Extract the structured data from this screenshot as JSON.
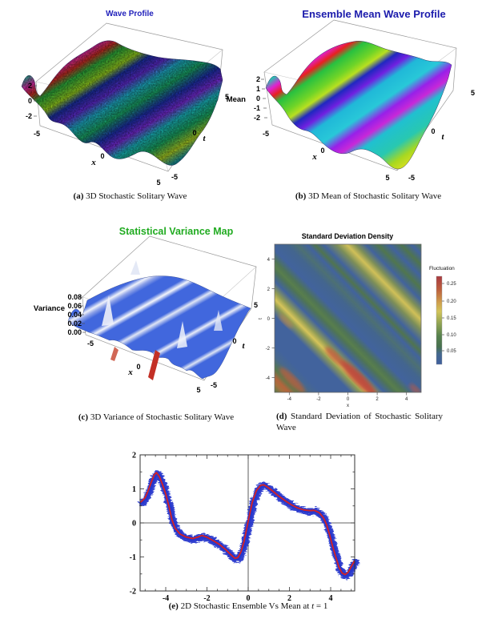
{
  "page": {
    "background": "#ffffff"
  },
  "figures": {
    "a": {
      "title": "Wave Profile",
      "title_color": "#2222bb",
      "caption_tag": "(a)",
      "caption_text": " 3D Stochastic Solitary Wave",
      "z_ticks": [
        "2",
        "0",
        "-2"
      ],
      "z_corner": "-5",
      "x_mid": "0",
      "x_label": "x",
      "x_end": "5",
      "t_top": "5",
      "t_mid": "0",
      "t_label": "t",
      "t_end": "-5"
    },
    "b": {
      "title": "Ensemble Mean Wave Profile",
      "title_color": "#1b1bac",
      "caption_tag": "(b)",
      "caption_text": " 3D Mean of Stochastic Solitary Wave",
      "z_label": "Mean",
      "z_ticks": [
        "2",
        "1",
        "0",
        "-1",
        "-2"
      ],
      "z_corner": "-5",
      "x_mid": "0",
      "x_label": "x",
      "x_end": "5",
      "t_top": "5",
      "t_mid": "0",
      "t_label": "t",
      "t_end": "-5"
    },
    "c": {
      "title": "Statistical Variance Map",
      "title_color": "#21ab21",
      "caption_tag": "(c)",
      "caption_text": " 3D Variance of Stochastic Solitary Wave",
      "z_label": "Variance",
      "z_ticks": [
        "0.08",
        "0.06",
        "0.04",
        "0.02",
        "0.00"
      ],
      "z_corner": "-5",
      "x_mid": "0",
      "x_label": "x",
      "x_end": "5",
      "t_top": "5",
      "t_mid": "0",
      "t_label": "t",
      "t_end": "-5"
    },
    "d": {
      "title": "Standard Deviation Density",
      "caption_tag": "(d)",
      "caption_text": " Standard Deviation of Stochastic Solitary Wave",
      "x_ticks": [
        "-4",
        "-2",
        "0",
        "2",
        "4"
      ],
      "y_ticks": [
        "4",
        "2",
        "0",
        "-2",
        "-4"
      ],
      "x_label": "x",
      "y_label": "t",
      "colorbar_label": "Fluctuation",
      "colorbar_ticks": [
        "0.25",
        "0.20",
        "0.15",
        "0.10",
        "0.05"
      ]
    },
    "e": {
      "caption_tag": "(e)",
      "caption_pre": " 2D Stochastic Ensemble Vs Mean at ",
      "caption_var": "t",
      "caption_post": " = 1"
    }
  },
  "chart_data": [
    {
      "id": "a",
      "type": "3d-surface",
      "title": "Wave Profile",
      "xlabel": "x",
      "ylabel": "t",
      "x_range": [
        -5,
        5
      ],
      "t_range": [
        -5,
        5
      ],
      "z_range": [
        -2,
        2
      ],
      "z_ticks": [
        2,
        0,
        -2
      ],
      "x_ticks": [
        -5,
        0,
        5
      ],
      "t_ticks": [
        -5,
        0,
        5
      ],
      "style": "noisy stochastic solitary-wave surface, rainbow colormap, diagonal crests parallel to t axis"
    },
    {
      "id": "b",
      "type": "3d-surface",
      "title": "Ensemble Mean Wave Profile",
      "xlabel": "x",
      "ylabel": "t",
      "zlabel": "Mean",
      "x_range": [
        -5,
        5
      ],
      "t_range": [
        -5,
        5
      ],
      "z_range": [
        -2,
        2
      ],
      "z_ticks": [
        2,
        1,
        0,
        -1,
        -2
      ],
      "x_ticks": [
        -5,
        0,
        5
      ],
      "t_ticks": [
        -5,
        0,
        5
      ],
      "style": "smooth ensemble-mean solitary-wave surface, rainbow colormap, diagonal crests parallel to t axis"
    },
    {
      "id": "c",
      "type": "3d-surface",
      "title": "Statistical Variance Map",
      "xlabel": "x",
      "ylabel": "t",
      "zlabel": "Variance",
      "x_range": [
        -5,
        5
      ],
      "t_range": [
        -5,
        5
      ],
      "z_range": [
        0,
        0.08
      ],
      "z_ticks": [
        0.08,
        0.06,
        0.04,
        0.02,
        0.0
      ],
      "x_ticks": [
        -5,
        0,
        5
      ],
      "t_ticks": [
        -5,
        0,
        5
      ],
      "style": "mostly flat low-variance blue surface with narrow white diagonal ridges and one small red ridge"
    },
    {
      "id": "d",
      "type": "heatmap",
      "title": "Standard Deviation Density",
      "xlabel": "x",
      "ylabel": "t",
      "x_range": [
        -5,
        5
      ],
      "t_range": [
        -5,
        5
      ],
      "x_ticks": [
        -4,
        -2,
        0,
        2,
        4
      ],
      "y_ticks": [
        4,
        2,
        0,
        -2,
        -4
      ],
      "colorbar_label": "Fluctuation",
      "colorbar_ticks": [
        0.25,
        0.2,
        0.15,
        0.1,
        0.05
      ],
      "value_range": [
        0,
        0.27
      ],
      "pattern": "diagonal bands of nearly constant x+t on a blue low-value background",
      "bands": [
        {
          "x_plus_t": -8.5,
          "peak_value": 0.2,
          "color": "orange-red"
        },
        {
          "x_plus_t": -7.5,
          "peak_value": 0.12,
          "color": "green"
        },
        {
          "x_plus_t": -3.7,
          "peak_value": 0.27,
          "color": "yellow, red segment near t=-3.5..-5"
        },
        {
          "x_plus_t": -1.5,
          "peak_value": 0.1,
          "color": "green"
        },
        {
          "x_plus_t": 1.5,
          "peak_value": 0.08,
          "color": "faint green"
        },
        {
          "x_plus_t": 2.8,
          "peak_value": 0.1,
          "color": "green"
        },
        {
          "x_plus_t": 4.9,
          "peak_value": 0.2,
          "color": "yellow"
        },
        {
          "x_plus_t": 7.2,
          "peak_value": 0.1,
          "color": "green"
        }
      ]
    },
    {
      "id": "e",
      "type": "line",
      "xlim": [
        -5.2,
        5.2
      ],
      "ylim": [
        -2,
        2
      ],
      "x_ticks": [
        -4,
        -2,
        0,
        2,
        4
      ],
      "y_ticks": [
        2,
        1,
        0,
        -1,
        -2
      ],
      "series": [
        {
          "name": "stochastic ensemble",
          "color": "#2233cc",
          "style": "noisy band around the mean, half-width about 0.15"
        },
        {
          "name": "ensemble mean",
          "color": "#d62222",
          "points": [
            [
              -5.2,
              0.62
            ],
            [
              -5.0,
              0.74
            ],
            [
              -4.85,
              0.95
            ],
            [
              -4.7,
              1.2
            ],
            [
              -4.55,
              1.42
            ],
            [
              -4.45,
              1.48
            ],
            [
              -4.3,
              1.35
            ],
            [
              -4.15,
              1.12
            ],
            [
              -4.0,
              0.85
            ],
            [
              -3.85,
              0.5
            ],
            [
              -3.7,
              0.1
            ],
            [
              -3.55,
              -0.15
            ],
            [
              -3.3,
              -0.33
            ],
            [
              -3.0,
              -0.42
            ],
            [
              -2.7,
              -0.46
            ],
            [
              -2.45,
              -0.42
            ],
            [
              -2.25,
              -0.37
            ],
            [
              -2.0,
              -0.42
            ],
            [
              -1.7,
              -0.52
            ],
            [
              -1.4,
              -0.63
            ],
            [
              -1.1,
              -0.78
            ],
            [
              -0.85,
              -0.93
            ],
            [
              -0.65,
              -1.04
            ],
            [
              -0.5,
              -1.02
            ],
            [
              -0.35,
              -0.85
            ],
            [
              -0.2,
              -0.55
            ],
            [
              -0.05,
              -0.1
            ],
            [
              0.05,
              0.2
            ],
            [
              0.2,
              0.62
            ],
            [
              0.4,
              0.95
            ],
            [
              0.6,
              1.1
            ],
            [
              0.75,
              1.12
            ],
            [
              0.95,
              1.05
            ],
            [
              1.2,
              0.93
            ],
            [
              1.5,
              0.78
            ],
            [
              1.8,
              0.65
            ],
            [
              2.1,
              0.53
            ],
            [
              2.4,
              0.44
            ],
            [
              2.7,
              0.38
            ],
            [
              3.0,
              0.36
            ],
            [
              3.2,
              0.37
            ],
            [
              3.45,
              0.3
            ],
            [
              3.65,
              0.15
            ],
            [
              3.8,
              -0.05
            ],
            [
              3.95,
              -0.35
            ],
            [
              4.1,
              -0.7
            ],
            [
              4.25,
              -1.0
            ],
            [
              4.4,
              -1.3
            ],
            [
              4.55,
              -1.47
            ],
            [
              4.7,
              -1.52
            ],
            [
              4.85,
              -1.45
            ],
            [
              5.0,
              -1.28
            ],
            [
              5.15,
              -1.12
            ]
          ]
        }
      ]
    }
  ]
}
